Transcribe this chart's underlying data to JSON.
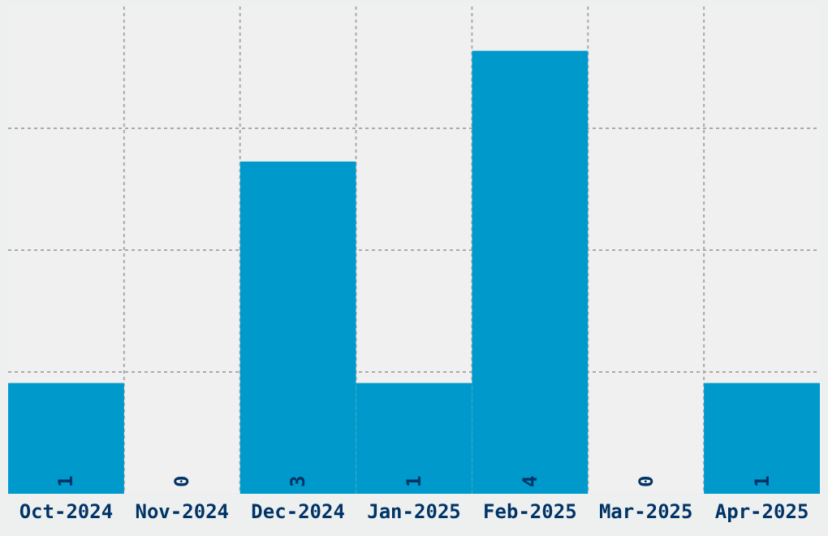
{
  "chart_data": {
    "type": "bar",
    "categories": [
      "Oct-2024",
      "Nov-2024",
      "Dec-2024",
      "Jan-2025",
      "Feb-2025",
      "Mar-2025",
      "Apr-2025"
    ],
    "values": [
      1,
      0,
      3,
      1,
      4,
      0,
      1
    ],
    "color": "#0099cc",
    "ylim": [
      0,
      4.4
    ],
    "yticks": [
      {
        "value": 1.1,
        "label": null
      },
      {
        "value": 2.2,
        "label": null
      },
      {
        "value": 3.3,
        "label": null
      }
    ],
    "tick_labels": "x",
    "grid": true,
    "data_labels": true
  }
}
